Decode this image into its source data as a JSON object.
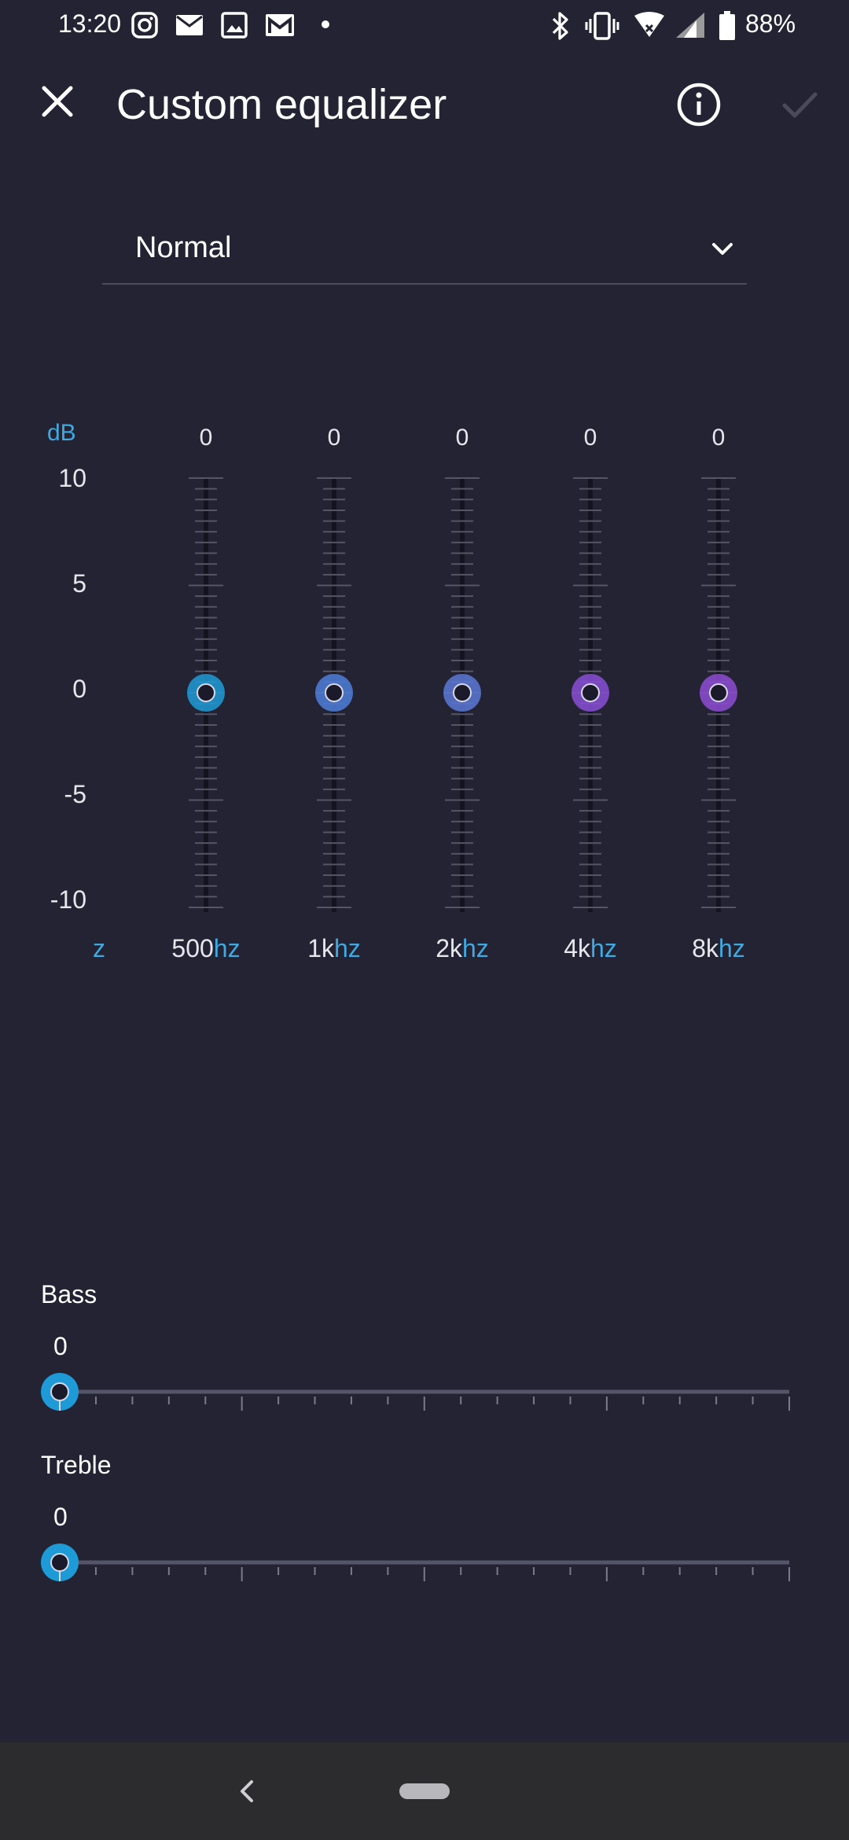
{
  "status_bar": {
    "time": "13:20",
    "battery_percent": "88%",
    "left_icons": [
      "instagram-icon",
      "mail-icon",
      "gallery-icon",
      "gmail-icon",
      "dot-icon"
    ],
    "right_icons": [
      "bluetooth-icon",
      "vibrate-icon",
      "wifi-icon",
      "signal-icon",
      "battery-icon"
    ]
  },
  "app_bar": {
    "title": "Custom equalizer",
    "close_icon": "close-icon",
    "info_icon": "info-icon",
    "confirm_icon": "check-icon"
  },
  "preset": {
    "selected": "Normal",
    "icon": "chevron-down-icon"
  },
  "equalizer": {
    "unit_label": "dB",
    "y_ticks": [
      "10",
      "5",
      "0",
      "-5",
      "-10"
    ],
    "range": [
      -10,
      10
    ],
    "z_label": "z",
    "bands": [
      {
        "num": "500",
        "unit": "hz",
        "value_text": "0",
        "value": 0,
        "color": "#1e9bd7"
      },
      {
        "num": "1k",
        "unit": "hz",
        "value_text": "0",
        "value": 0,
        "color": "#4f7ed9"
      },
      {
        "num": "2k",
        "unit": "hz",
        "value_text": "0",
        "value": 0,
        "color": "#5a78d6"
      },
      {
        "num": "4k",
        "unit": "hz",
        "value_text": "0",
        "value": 0,
        "color": "#8a4fd6"
      },
      {
        "num": "8k",
        "unit": "hz",
        "value_text": "0",
        "value": 0,
        "color": "#8e4cd4"
      }
    ],
    "line_colors": {
      "start": "#26b0e6",
      "end": "#9a5ad8"
    }
  },
  "bass": {
    "label": "Bass",
    "value_text": "0",
    "value": 0
  },
  "treble": {
    "label": "Treble",
    "value_text": "0",
    "value": 0
  },
  "colors": {
    "background": "#232334",
    "accent": "#3fa9e0",
    "knob": "#1e9bd7",
    "navbar": "#2c2c2e"
  },
  "nav_bar": {
    "back_icon": "back-icon",
    "home_icon": "home-pill-icon"
  }
}
